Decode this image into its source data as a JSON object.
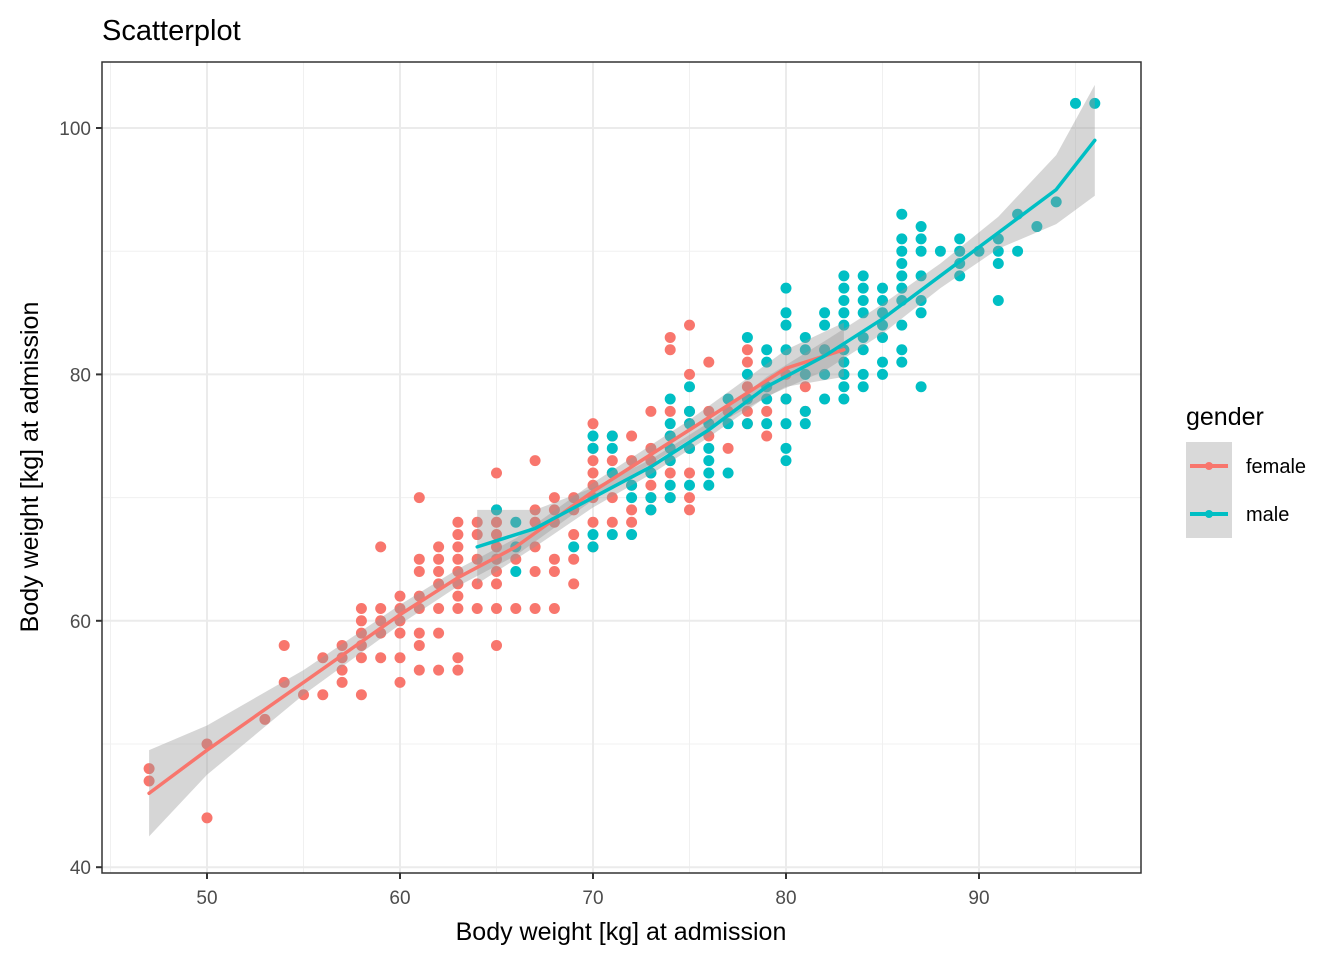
{
  "chart_data": {
    "type": "scatter",
    "title": "Scatterplot",
    "xlabel": "Body weight [kg] at admission",
    "ylabel": "Body weight [kg] at admission",
    "xlim": [
      44.5,
      98.5
    ],
    "ylim": [
      39.5,
      105.3
    ],
    "x_ticks": [
      50,
      60,
      70,
      80,
      90
    ],
    "y_ticks": [
      40,
      60,
      80,
      100
    ],
    "grid": true,
    "legend": {
      "title": "gender",
      "position": "right"
    },
    "series": [
      {
        "name": "female",
        "color": "#F8766D",
        "points": [
          [
            47,
            48
          ],
          [
            47,
            47
          ],
          [
            50,
            50
          ],
          [
            50,
            44
          ],
          [
            53,
            52
          ],
          [
            54,
            58
          ],
          [
            54,
            55
          ],
          [
            55,
            54
          ],
          [
            56,
            57
          ],
          [
            56,
            54
          ],
          [
            57,
            58
          ],
          [
            57,
            57
          ],
          [
            57,
            56
          ],
          [
            57,
            55
          ],
          [
            58,
            61
          ],
          [
            58,
            60
          ],
          [
            58,
            59
          ],
          [
            58,
            58
          ],
          [
            58,
            57
          ],
          [
            58,
            54
          ],
          [
            59,
            66
          ],
          [
            59,
            61
          ],
          [
            59,
            60
          ],
          [
            59,
            59
          ],
          [
            59,
            57
          ],
          [
            60,
            62
          ],
          [
            60,
            61
          ],
          [
            60,
            60
          ],
          [
            60,
            59
          ],
          [
            60,
            57
          ],
          [
            60,
            55
          ],
          [
            61,
            70
          ],
          [
            61,
            65
          ],
          [
            61,
            64
          ],
          [
            61,
            62
          ],
          [
            61,
            61
          ],
          [
            61,
            59
          ],
          [
            61,
            58
          ],
          [
            61,
            56
          ],
          [
            62,
            66
          ],
          [
            62,
            65
          ],
          [
            62,
            64
          ],
          [
            62,
            63
          ],
          [
            62,
            61
          ],
          [
            62,
            59
          ],
          [
            62,
            56
          ],
          [
            63,
            68
          ],
          [
            63,
            67
          ],
          [
            63,
            66
          ],
          [
            63,
            65
          ],
          [
            63,
            64
          ],
          [
            63,
            63
          ],
          [
            63,
            62
          ],
          [
            63,
            61
          ],
          [
            63,
            57
          ],
          [
            63,
            56
          ],
          [
            64,
            68
          ],
          [
            64,
            67
          ],
          [
            64,
            65
          ],
          [
            64,
            63
          ],
          [
            64,
            61
          ],
          [
            65,
            72
          ],
          [
            65,
            69
          ],
          [
            65,
            68
          ],
          [
            65,
            67
          ],
          [
            65,
            66
          ],
          [
            65,
            65
          ],
          [
            65,
            64
          ],
          [
            65,
            63
          ],
          [
            65,
            61
          ],
          [
            65,
            58
          ],
          [
            66,
            65
          ],
          [
            66,
            61
          ],
          [
            67,
            73
          ],
          [
            67,
            69
          ],
          [
            67,
            68
          ],
          [
            67,
            66
          ],
          [
            67,
            64
          ],
          [
            67,
            61
          ],
          [
            68,
            70
          ],
          [
            68,
            69
          ],
          [
            68,
            68
          ],
          [
            68,
            65
          ],
          [
            68,
            64
          ],
          [
            68,
            61
          ],
          [
            69,
            70
          ],
          [
            69,
            69
          ],
          [
            69,
            67
          ],
          [
            69,
            65
          ],
          [
            69,
            63
          ],
          [
            70,
            76
          ],
          [
            70,
            74
          ],
          [
            70,
            73
          ],
          [
            70,
            72
          ],
          [
            70,
            71
          ],
          [
            70,
            70
          ],
          [
            70,
            68
          ],
          [
            70,
            66
          ],
          [
            71,
            75
          ],
          [
            71,
            73
          ],
          [
            71,
            72
          ],
          [
            71,
            70
          ],
          [
            71,
            68
          ],
          [
            72,
            75
          ],
          [
            72,
            73
          ],
          [
            72,
            71
          ],
          [
            72,
            69
          ],
          [
            72,
            68
          ],
          [
            73,
            77
          ],
          [
            73,
            74
          ],
          [
            73,
            73
          ],
          [
            73,
            72
          ],
          [
            73,
            71
          ],
          [
            73,
            70
          ],
          [
            73,
            69
          ],
          [
            74,
            83
          ],
          [
            74,
            82
          ],
          [
            74,
            77
          ],
          [
            74,
            75
          ],
          [
            74,
            73
          ],
          [
            74,
            72
          ],
          [
            74,
            70
          ],
          [
            75,
            84
          ],
          [
            75,
            80
          ],
          [
            75,
            77
          ],
          [
            75,
            76
          ],
          [
            75,
            74
          ],
          [
            75,
            72
          ],
          [
            75,
            70
          ],
          [
            75,
            69
          ],
          [
            76,
            81
          ],
          [
            76,
            77
          ],
          [
            76,
            75
          ],
          [
            77,
            77
          ],
          [
            77,
            74
          ],
          [
            78,
            82
          ],
          [
            78,
            81
          ],
          [
            78,
            79
          ],
          [
            78,
            77
          ],
          [
            78,
            76
          ],
          [
            79,
            77
          ],
          [
            79,
            75
          ],
          [
            80,
            80
          ],
          [
            80,
            78
          ],
          [
            81,
            79
          ],
          [
            81,
            77
          ],
          [
            82,
            82
          ],
          [
            83,
            80
          ]
        ],
        "smooth": {
          "x": [
            47,
            50,
            55,
            60,
            63,
            66,
            70,
            75,
            78,
            80,
            83
          ],
          "y": [
            46,
            49.5,
            55,
            60.5,
            63.5,
            66,
            70.5,
            75.5,
            78.5,
            80.5,
            82
          ],
          "se_halfwidth": [
            3.5,
            2,
            1,
            0.8,
            0.7,
            0.7,
            0.7,
            0.8,
            1.2,
            1.5,
            2.2
          ]
        }
      },
      {
        "name": "male",
        "color": "#00BFC4",
        "points": [
          [
            65,
            69
          ],
          [
            66,
            68
          ],
          [
            66,
            66
          ],
          [
            66,
            64
          ],
          [
            69,
            66
          ],
          [
            70,
            75
          ],
          [
            70,
            74
          ],
          [
            70,
            67
          ],
          [
            70,
            66
          ],
          [
            71,
            75
          ],
          [
            71,
            74
          ],
          [
            71,
            72
          ],
          [
            71,
            67
          ],
          [
            72,
            71
          ],
          [
            72,
            70
          ],
          [
            72,
            67
          ],
          [
            73,
            72
          ],
          [
            73,
            70
          ],
          [
            73,
            69
          ],
          [
            74,
            78
          ],
          [
            74,
            76
          ],
          [
            74,
            75
          ],
          [
            74,
            74
          ],
          [
            74,
            73
          ],
          [
            74,
            71
          ],
          [
            74,
            70
          ],
          [
            75,
            79
          ],
          [
            75,
            77
          ],
          [
            75,
            76
          ],
          [
            75,
            74
          ],
          [
            75,
            71
          ],
          [
            76,
            76
          ],
          [
            76,
            74
          ],
          [
            76,
            73
          ],
          [
            76,
            72
          ],
          [
            76,
            71
          ],
          [
            77,
            78
          ],
          [
            77,
            76
          ],
          [
            77,
            72
          ],
          [
            78,
            83
          ],
          [
            78,
            80
          ],
          [
            78,
            78
          ],
          [
            78,
            76
          ],
          [
            79,
            82
          ],
          [
            79,
            81
          ],
          [
            79,
            79
          ],
          [
            79,
            78
          ],
          [
            79,
            76
          ],
          [
            80,
            87
          ],
          [
            80,
            85
          ],
          [
            80,
            84
          ],
          [
            80,
            82
          ],
          [
            80,
            78
          ],
          [
            80,
            76
          ],
          [
            80,
            74
          ],
          [
            80,
            73
          ],
          [
            81,
            83
          ],
          [
            81,
            82
          ],
          [
            81,
            80
          ],
          [
            81,
            77
          ],
          [
            81,
            76
          ],
          [
            82,
            85
          ],
          [
            82,
            84
          ],
          [
            82,
            82
          ],
          [
            82,
            80
          ],
          [
            82,
            78
          ],
          [
            83,
            88
          ],
          [
            83,
            87
          ],
          [
            83,
            86
          ],
          [
            83,
            85
          ],
          [
            83,
            84
          ],
          [
            83,
            82
          ],
          [
            83,
            81
          ],
          [
            83,
            80
          ],
          [
            83,
            79
          ],
          [
            83,
            78
          ],
          [
            84,
            88
          ],
          [
            84,
            87
          ],
          [
            84,
            86
          ],
          [
            84,
            85
          ],
          [
            84,
            83
          ],
          [
            84,
            82
          ],
          [
            84,
            80
          ],
          [
            84,
            79
          ],
          [
            85,
            87
          ],
          [
            85,
            86
          ],
          [
            85,
            85
          ],
          [
            85,
            84
          ],
          [
            85,
            83
          ],
          [
            85,
            81
          ],
          [
            85,
            80
          ],
          [
            86,
            93
          ],
          [
            86,
            91
          ],
          [
            86,
            90
          ],
          [
            86,
            89
          ],
          [
            86,
            88
          ],
          [
            86,
            87
          ],
          [
            86,
            86
          ],
          [
            86,
            84
          ],
          [
            86,
            81
          ],
          [
            86,
            82
          ],
          [
            87,
            92
          ],
          [
            87,
            91
          ],
          [
            87,
            90
          ],
          [
            87,
            88
          ],
          [
            87,
            86
          ],
          [
            87,
            85
          ],
          [
            87,
            79
          ],
          [
            88,
            90
          ],
          [
            89,
            91
          ],
          [
            89,
            90
          ],
          [
            89,
            89
          ],
          [
            89,
            88
          ],
          [
            90,
            90
          ],
          [
            91,
            91
          ],
          [
            91,
            90
          ],
          [
            91,
            89
          ],
          [
            91,
            86
          ],
          [
            92,
            93
          ],
          [
            92,
            90
          ],
          [
            93,
            92
          ],
          [
            94,
            94
          ],
          [
            95,
            102
          ],
          [
            96,
            102
          ]
        ],
        "smooth": {
          "x": [
            64,
            67,
            70,
            73,
            76,
            79,
            82,
            85,
            88,
            91,
            94,
            96
          ],
          "y": [
            66,
            67.5,
            70,
            72.5,
            75.5,
            79,
            81.5,
            84.5,
            88,
            91.5,
            95,
            99
          ],
          "se_halfwidth": [
            3,
            1.5,
            0.8,
            0.6,
            0.6,
            0.8,
            1.2,
            1.2,
            1,
            1.3,
            2.8,
            4.5
          ]
        }
      }
    ]
  }
}
